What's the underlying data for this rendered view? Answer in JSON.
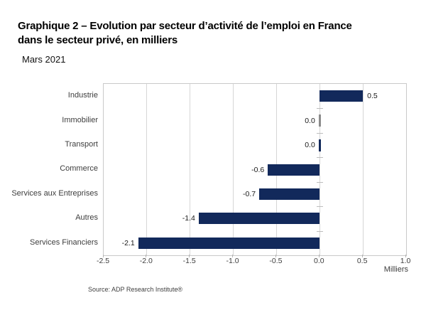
{
  "header": {
    "title_lines": [
      "Graphique 2 – Evolution par secteur d’activité de l’emploi en France",
      "dans le secteur privé, en milliers"
    ],
    "subtitle": "Mars 2021"
  },
  "chart_data": {
    "type": "bar",
    "orientation": "horizontal",
    "title": "Graphique 2 – Evolution par secteur d’activité de l’emploi en France dans le secteur privé, en milliers",
    "subtitle": "Mars 2021",
    "categories": [
      "Industrie",
      "Immobilier",
      "Transport",
      "Commerce",
      "Services aux Entreprises",
      "Autres",
      "Services Financiers"
    ],
    "values": [
      0.5,
      0.0,
      0.0,
      -0.6,
      -0.7,
      -1.4,
      -2.1
    ],
    "value_labels": [
      "0.5",
      "0.0",
      "0.0",
      "-0.6",
      "-0.7",
      "-1.4",
      "-2.1"
    ],
    "x_ticks": [
      -2.5,
      -2.0,
      -1.5,
      -1.0,
      -0.5,
      0.0,
      0.5,
      1.0
    ],
    "x_tick_labels": [
      "-2.5",
      "-2.0",
      "-1.5",
      "-1.0",
      "-0.5",
      "0.0",
      "0.5",
      "1.0"
    ],
    "xlim": [
      -2.5,
      1.0
    ],
    "xlabel": "Milliers",
    "ylabel": "",
    "grid": true,
    "legend": false,
    "bar_color": "#12295b",
    "zero_marker_colors": [
      "#8c8c8c",
      "#12295b"
    ],
    "gridline_color": "#d6d6d6"
  },
  "footer": {
    "source": "Source: ADP Research Institute®"
  }
}
